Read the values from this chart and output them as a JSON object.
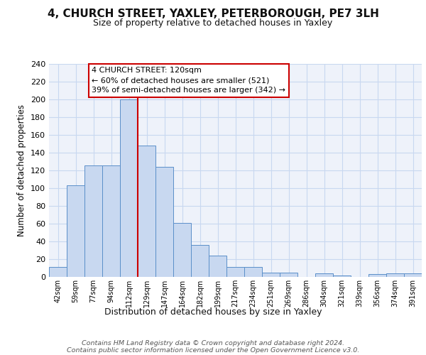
{
  "title1": "4, CHURCH STREET, YAXLEY, PETERBOROUGH, PE7 3LH",
  "title2": "Size of property relative to detached houses in Yaxley",
  "xlabel": "Distribution of detached houses by size in Yaxley",
  "ylabel": "Number of detached properties",
  "bar_labels": [
    "42sqm",
    "59sqm",
    "77sqm",
    "94sqm",
    "112sqm",
    "129sqm",
    "147sqm",
    "164sqm",
    "182sqm",
    "199sqm",
    "217sqm",
    "234sqm",
    "251sqm",
    "269sqm",
    "286sqm",
    "304sqm",
    "321sqm",
    "339sqm",
    "356sqm",
    "374sqm",
    "391sqm"
  ],
  "bar_values": [
    11,
    103,
    126,
    126,
    200,
    148,
    124,
    61,
    36,
    24,
    11,
    11,
    5,
    5,
    0,
    4,
    2,
    0,
    3,
    4,
    4
  ],
  "bar_color": "#c8d8f0",
  "bar_edge_color": "#5b8fc9",
  "vline_index": 4,
  "vline_color": "#cc0000",
  "annotation_line1": "4 CHURCH STREET: 120sqm",
  "annotation_line2": "← 60% of detached houses are smaller (521)",
  "annotation_line3": "39% of semi-detached houses are larger (342) →",
  "annotation_box_color": "#ffffff",
  "annotation_box_edge": "#cc0000",
  "grid_color": "#c8d8f0",
  "background_color": "#eef2fa",
  "footer_line1": "Contains HM Land Registry data © Crown copyright and database right 2024.",
  "footer_line2": "Contains public sector information licensed under the Open Government Licence v3.0.",
  "ylim": [
    0,
    240
  ],
  "yticks": [
    0,
    20,
    40,
    60,
    80,
    100,
    120,
    140,
    160,
    180,
    200,
    220,
    240
  ]
}
